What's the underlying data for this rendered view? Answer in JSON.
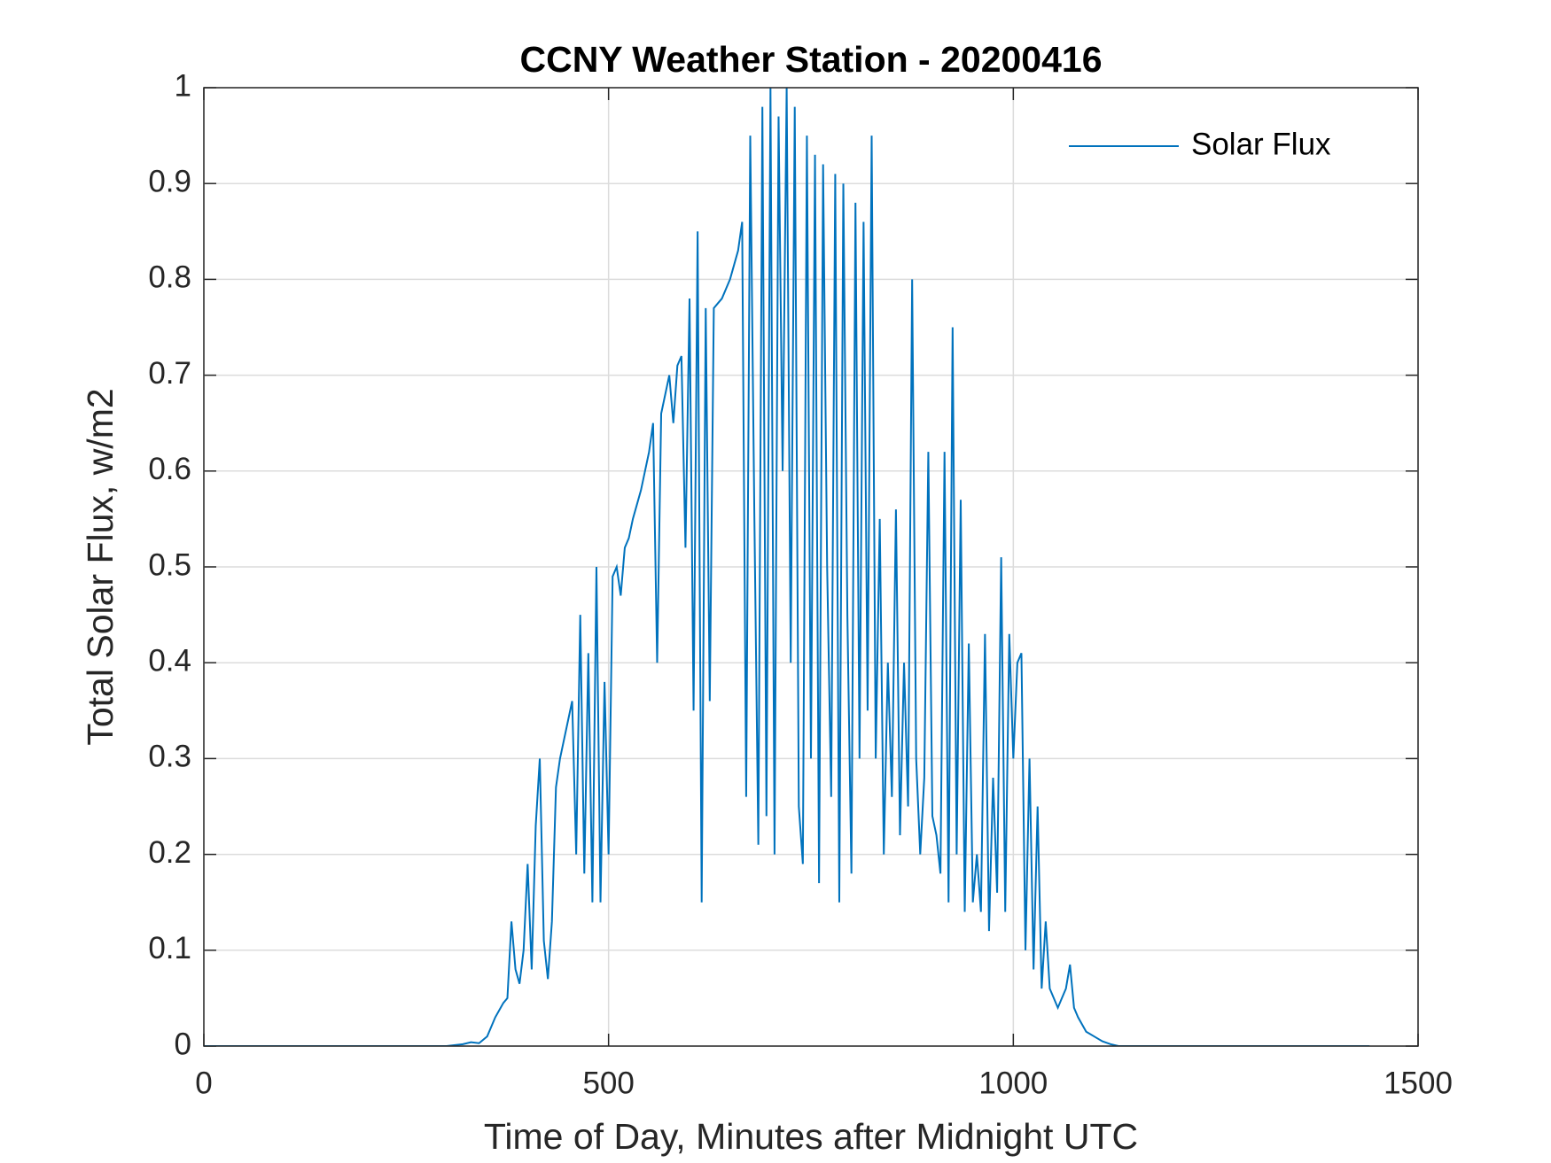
{
  "chart_data": {
    "type": "line",
    "title": "CCNY Weather Station - 20200416",
    "xlabel": "Time of Day, Minutes after Midnight UTC",
    "ylabel": "Total Solar Flux, w/m2",
    "x": [
      0,
      300,
      320,
      330,
      340,
      350,
      360,
      370,
      375,
      380,
      385,
      390,
      395,
      400,
      405,
      410,
      415,
      420,
      425,
      430,
      435,
      440,
      445,
      450,
      455,
      460,
      465,
      470,
      475,
      480,
      485,
      490,
      495,
      500,
      505,
      510,
      515,
      520,
      525,
      530,
      535,
      540,
      545,
      550,
      555,
      560,
      565,
      570,
      575,
      580,
      585,
      590,
      595,
      600,
      605,
      610,
      615,
      620,
      625,
      630,
      635,
      640,
      645,
      650,
      655,
      660,
      665,
      670,
      675,
      680,
      685,
      690,
      695,
      700,
      705,
      710,
      715,
      720,
      725,
      730,
      735,
      740,
      745,
      750,
      755,
      760,
      765,
      770,
      775,
      780,
      785,
      790,
      795,
      800,
      805,
      810,
      815,
      820,
      825,
      830,
      835,
      840,
      845,
      850,
      855,
      860,
      865,
      870,
      875,
      880,
      885,
      890,
      895,
      900,
      905,
      910,
      915,
      920,
      925,
      930,
      935,
      940,
      945,
      950,
      955,
      960,
      965,
      970,
      975,
      980,
      985,
      990,
      995,
      1000,
      1005,
      1010,
      1015,
      1020,
      1025,
      1030,
      1035,
      1040,
      1045,
      1050,
      1055,
      1060,
      1065,
      1070,
      1075,
      1080,
      1090,
      1100,
      1110,
      1120,
      1130,
      1440
    ],
    "series": [
      {
        "name": "Solar Flux",
        "color": "#0072bd",
        "values": [
          0,
          0,
          0.002,
          0.004,
          0.003,
          0.01,
          0.03,
          0.045,
          0.05,
          0.13,
          0.08,
          0.065,
          0.1,
          0.19,
          0.08,
          0.23,
          0.3,
          0.11,
          0.07,
          0.13,
          0.27,
          0.3,
          0.32,
          0.34,
          0.36,
          0.2,
          0.45,
          0.18,
          0.41,
          0.15,
          0.5,
          0.15,
          0.38,
          0.2,
          0.49,
          0.5,
          0.47,
          0.52,
          0.53,
          0.55,
          0.565,
          0.58,
          0.6,
          0.62,
          0.65,
          0.4,
          0.66,
          0.68,
          0.7,
          0.65,
          0.71,
          0.72,
          0.52,
          0.78,
          0.35,
          0.85,
          0.15,
          0.77,
          0.36,
          0.77,
          0.775,
          0.78,
          0.79,
          0.8,
          0.815,
          0.83,
          0.86,
          0.26,
          0.95,
          0.56,
          0.21,
          0.98,
          0.24,
          1.0,
          0.2,
          0.97,
          0.6,
          1.0,
          0.4,
          0.98,
          0.25,
          0.19,
          0.95,
          0.3,
          0.93,
          0.17,
          0.92,
          0.5,
          0.26,
          0.91,
          0.15,
          0.9,
          0.45,
          0.18,
          0.88,
          0.3,
          0.86,
          0.35,
          0.95,
          0.3,
          0.55,
          0.2,
          0.4,
          0.26,
          0.56,
          0.22,
          0.4,
          0.25,
          0.8,
          0.3,
          0.2,
          0.28,
          0.62,
          0.24,
          0.22,
          0.18,
          0.62,
          0.15,
          0.75,
          0.2,
          0.57,
          0.14,
          0.42,
          0.15,
          0.2,
          0.14,
          0.43,
          0.12,
          0.28,
          0.16,
          0.51,
          0.14,
          0.43,
          0.3,
          0.4,
          0.41,
          0.1,
          0.3,
          0.08,
          0.25,
          0.06,
          0.13,
          0.06,
          0.05,
          0.04,
          0.05,
          0.06,
          0.085,
          0.04,
          0.03,
          0.015,
          0.01,
          0.005,
          0.002,
          0,
          0
        ]
      }
    ],
    "xlim": [
      0,
      1500
    ],
    "xticks": [
      0,
      500,
      1000,
      1500
    ],
    "ylim": [
      0,
      1
    ],
    "yticks": [
      0,
      0.1,
      0.2,
      0.3,
      0.4,
      0.5,
      0.6,
      0.7,
      0.8,
      0.9,
      1
    ],
    "grid": true,
    "legend": "upper right"
  }
}
